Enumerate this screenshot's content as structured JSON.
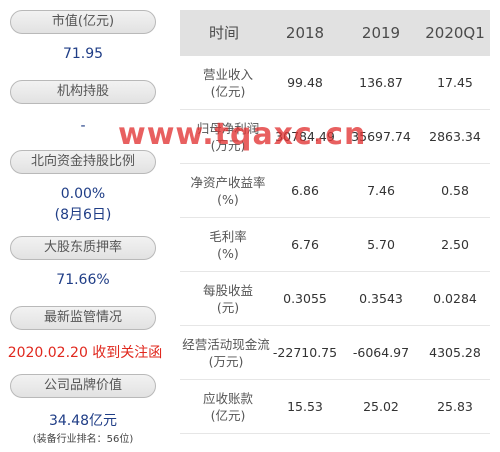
{
  "left_panel": [
    {
      "label": "市值(亿元)",
      "value": "71.95"
    },
    {
      "label": "机构持股",
      "value": "-"
    },
    {
      "label": "北向资金持股比例",
      "value": "0.00%",
      "value2": "(8月6日)"
    },
    {
      "label": "大股东质押率",
      "value": "71.66%"
    },
    {
      "label": "最新监管情况",
      "value": "2020.02.20 收到关注函"
    },
    {
      "label": "公司品牌价值",
      "value": "34.48亿元",
      "note": "(装备行业排名：56位)"
    }
  ],
  "table": {
    "headers": [
      "时间",
      "2018",
      "2019",
      "2020Q1"
    ],
    "rows": [
      {
        "l1": "营业收入",
        "l2": "(亿元)",
        "v": [
          "99.48",
          "136.87",
          "17.45"
        ]
      },
      {
        "l1": "归母净利润",
        "l2": "(万元)",
        "v": [
          "30784.49",
          "35697.74",
          "2863.34"
        ]
      },
      {
        "l1": "净资产收益率",
        "l2": "(%)",
        "v": [
          "6.86",
          "7.46",
          "0.58"
        ]
      },
      {
        "l1": "毛利率",
        "l2": "(%)",
        "v": [
          "6.76",
          "5.70",
          "2.50"
        ]
      },
      {
        "l1": "每股收益",
        "l2": "(元)",
        "v": [
          "0.3055",
          "0.3543",
          "0.0284"
        ]
      },
      {
        "l1": "经营活动现金流",
        "l2": "(万元)",
        "v": [
          "-22710.75",
          "-6064.97",
          "4305.28"
        ]
      },
      {
        "l1": "应收账款",
        "l2": "(亿元)",
        "v": [
          "15.53",
          "25.02",
          "25.83"
        ]
      }
    ]
  },
  "watermark": "www.tqaxc.cn",
  "colors": {
    "value_blue": "#1f3d86",
    "alert_red": "#e0281e",
    "header_gray": "#e1e1e1"
  }
}
